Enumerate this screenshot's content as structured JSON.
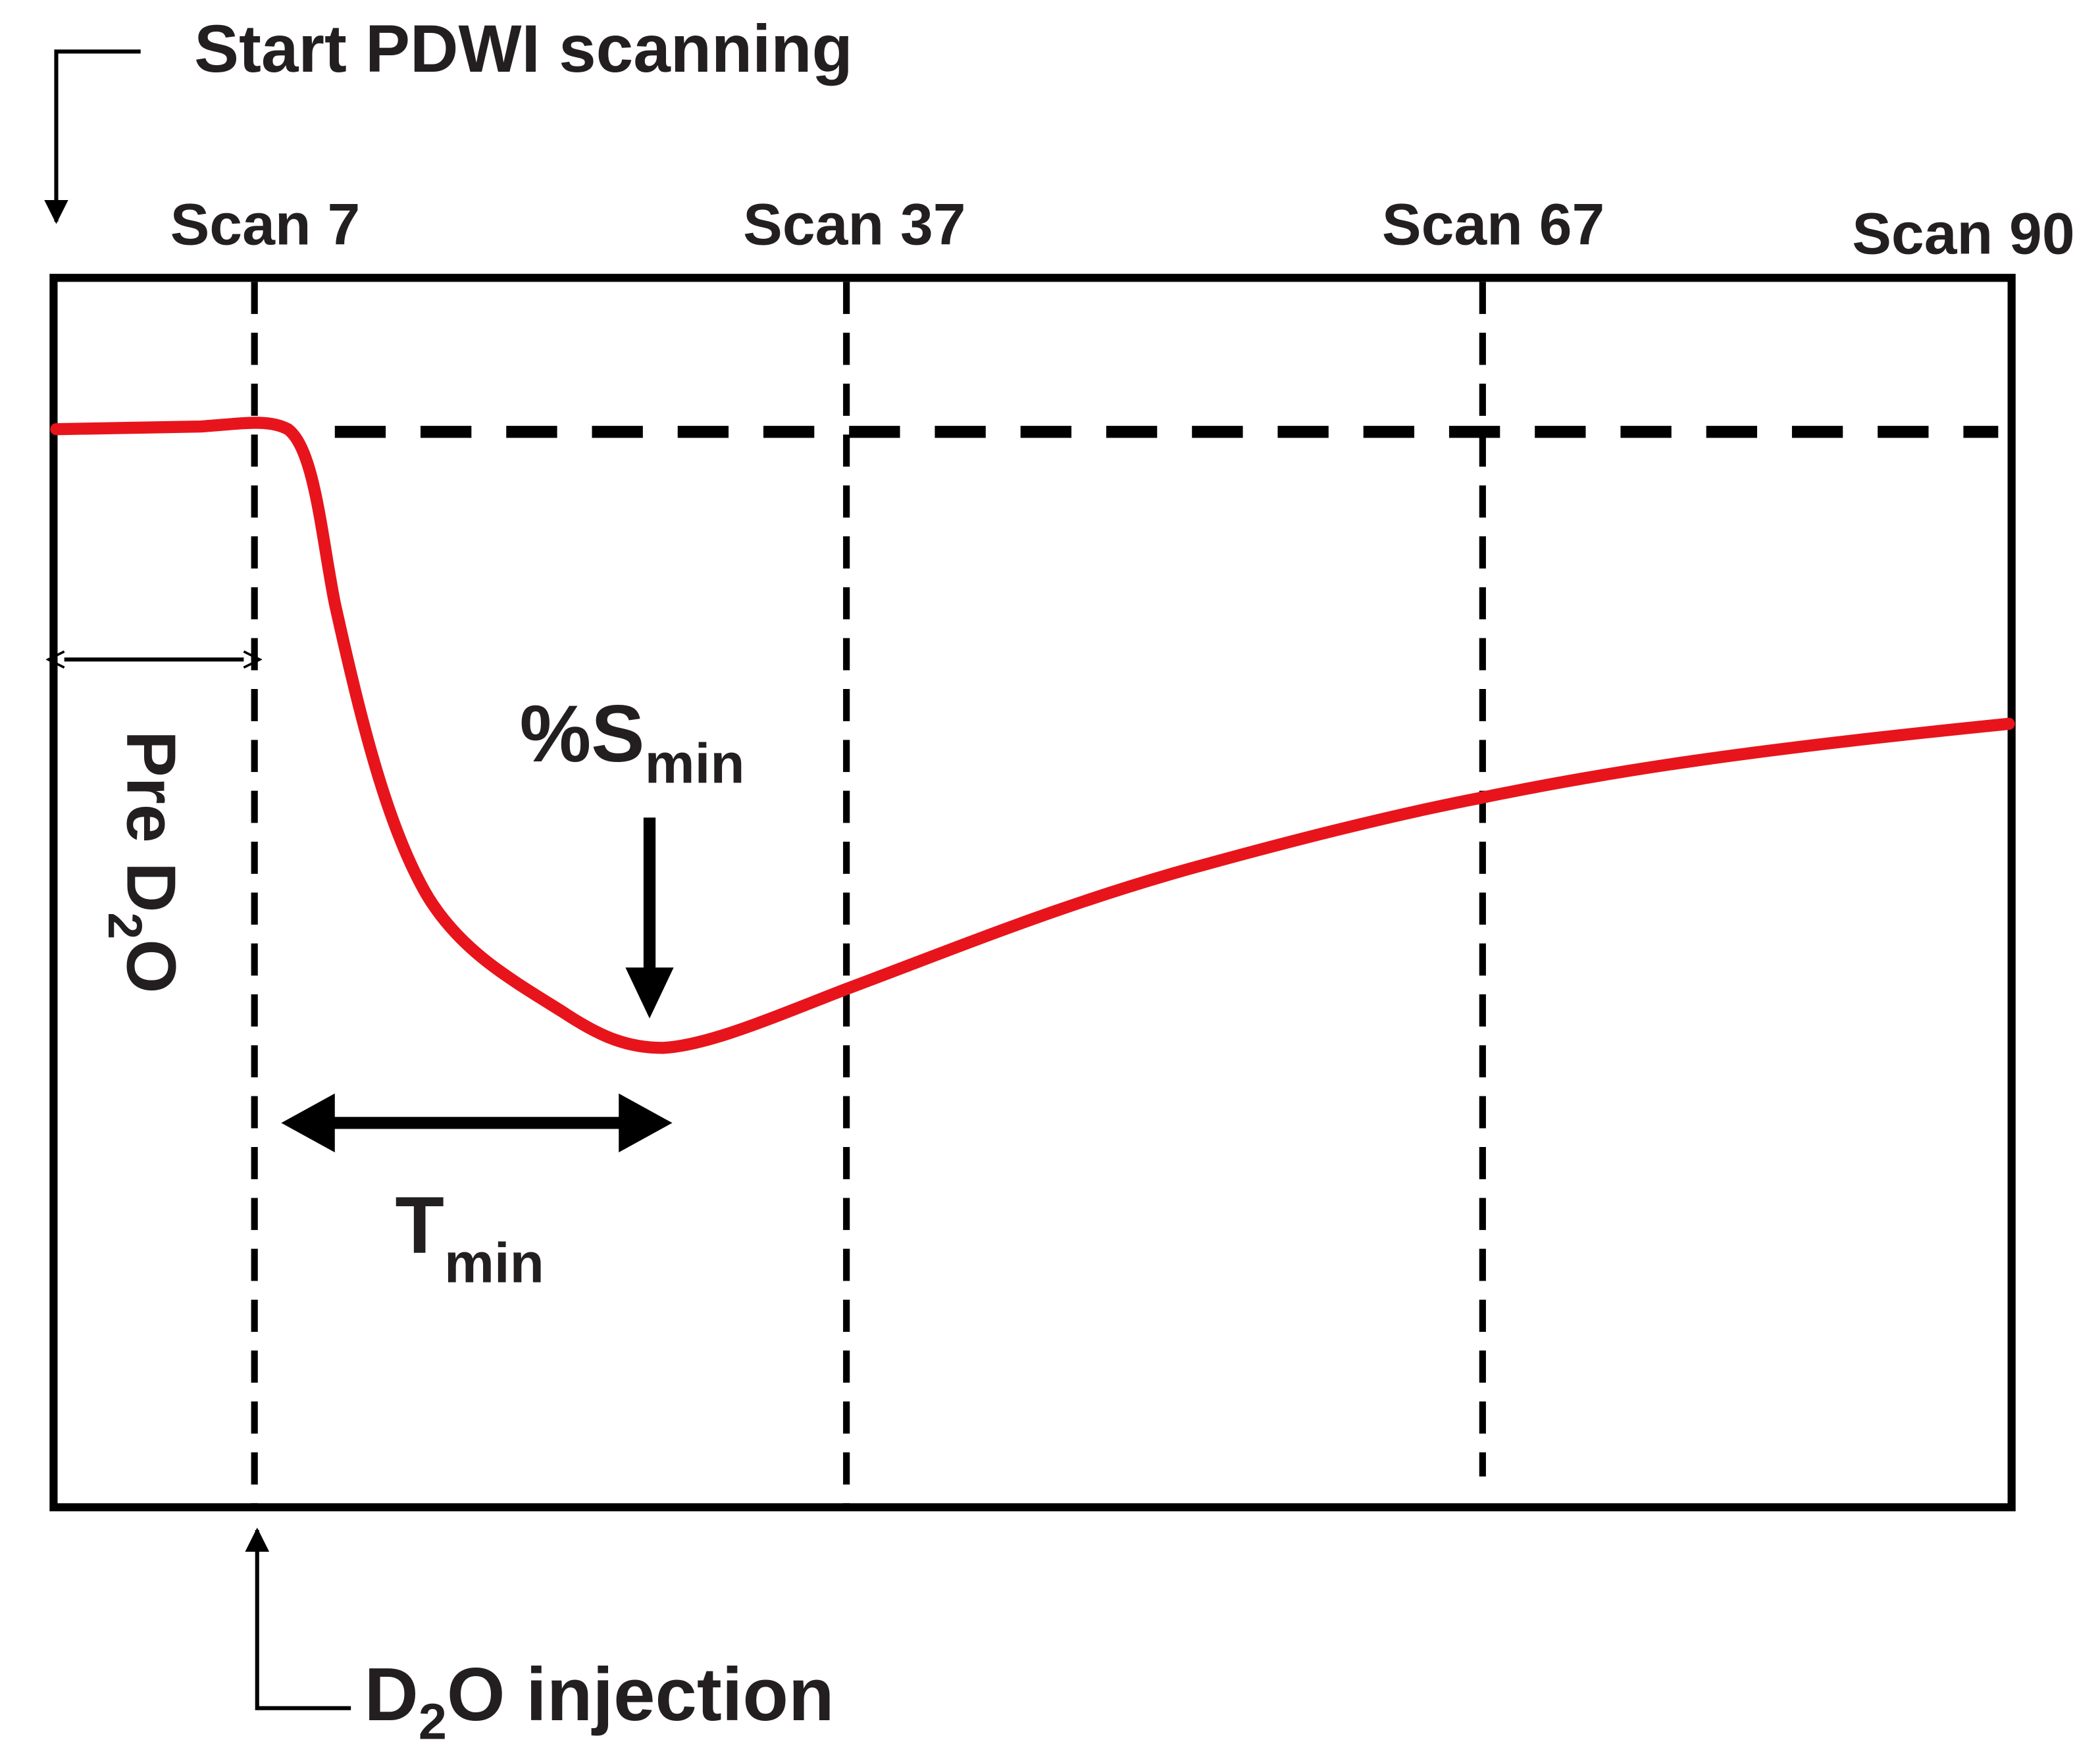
{
  "header": {
    "title": "Start PDWI scanning"
  },
  "scans": [
    "Scan 7",
    "Scan 37",
    "Scan 67",
    "Scan 90"
  ],
  "labels": {
    "smin": {
      "main": "%S",
      "sub": "min"
    },
    "tmin": {
      "main": "T",
      "sub": "min"
    },
    "pre_d2o": {
      "pre": "Pre D",
      "sub": "2",
      "post": "O"
    },
    "injection": {
      "pre": "D",
      "sub": "2",
      "post": "O injection"
    }
  }
}
